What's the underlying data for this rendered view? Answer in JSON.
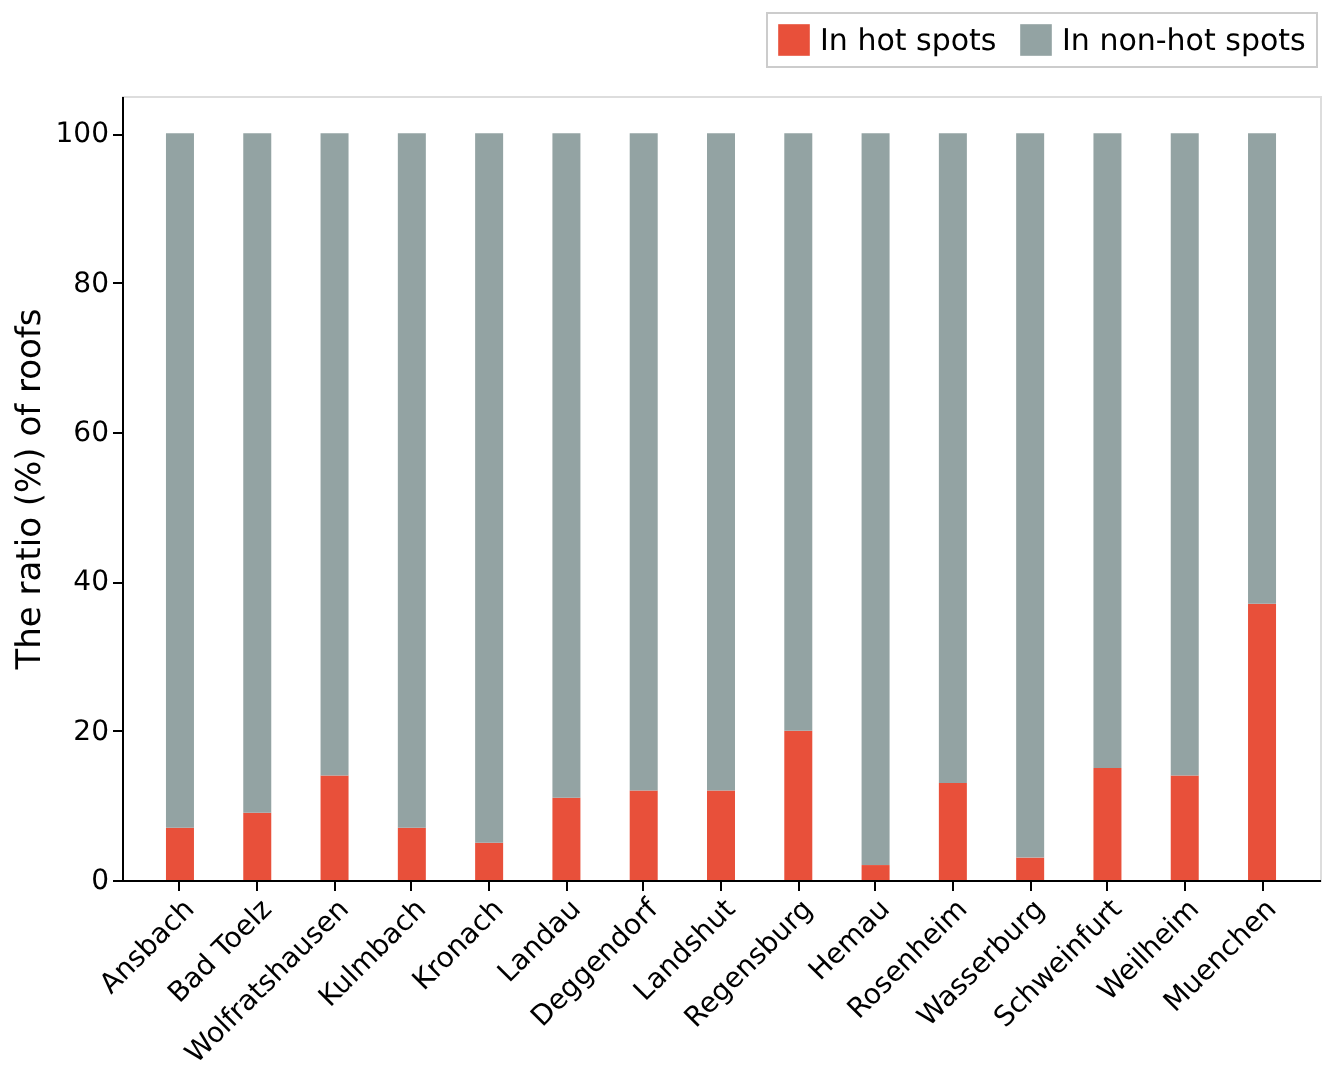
{
  "chart_data": {
    "type": "bar",
    "ylabel": "The ratio (%) of roofs",
    "stacked": true,
    "categories": [
      "Ansbach",
      "Bad Toelz",
      "Wolfratshausen",
      "Kulmbach",
      "Kronach",
      "Landau",
      "Deggendorf",
      "Landshut",
      "Regensburg",
      "Hemau",
      "Rosenheim",
      "Wasserburg",
      "Schweinfurt",
      "Weilheim",
      "Muenchen"
    ],
    "series": [
      {
        "name": "In hot spots",
        "color": "#e8503a",
        "values": [
          7,
          9,
          14,
          7,
          5,
          11,
          12,
          12,
          20,
          2,
          13,
          3,
          15,
          14,
          37
        ]
      },
      {
        "name": "In non-hot spots",
        "color": "#93a3a3",
        "values": [
          93,
          91,
          86,
          93,
          95,
          89,
          88,
          88,
          80,
          98,
          87,
          97,
          85,
          86,
          63
        ]
      }
    ],
    "ylim": [
      0,
      105
    ],
    "yticks": [
      0,
      20,
      40,
      60,
      80,
      100
    ],
    "grid": false,
    "legend": "top right"
  }
}
